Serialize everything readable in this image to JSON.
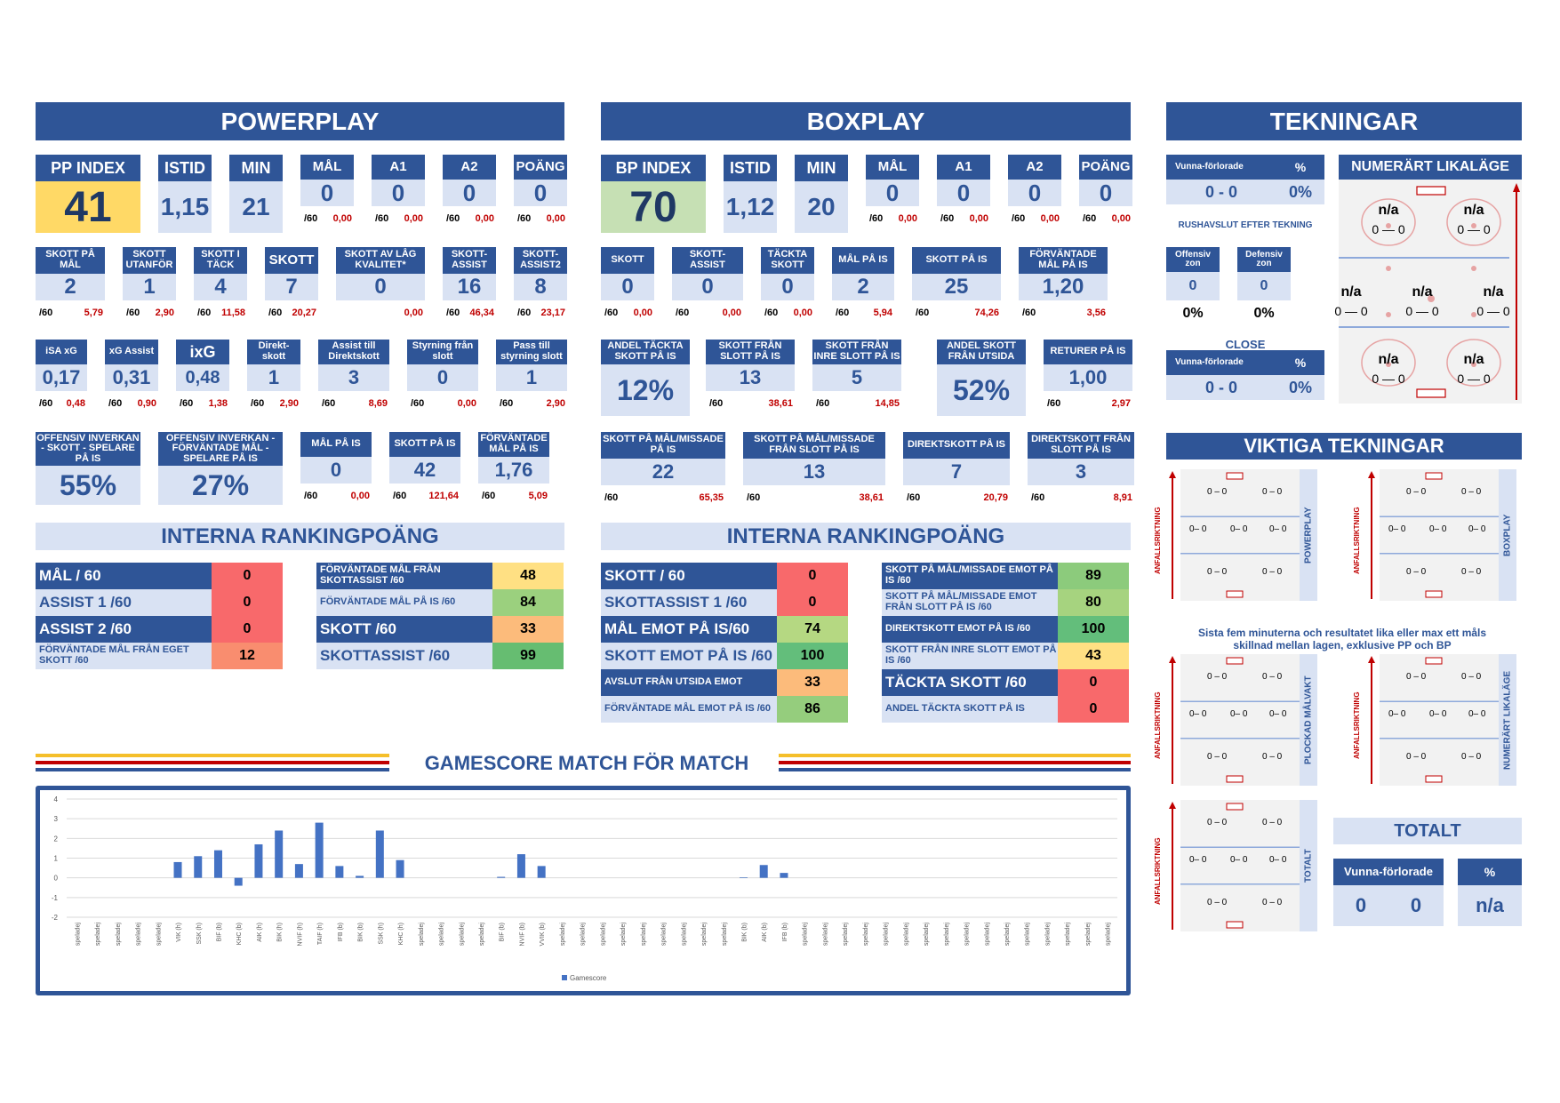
{
  "powerplay": {
    "title": "POWERPLAY",
    "row1": [
      {
        "h": "PP INDEX",
        "v": "41"
      },
      {
        "h": "ISTID",
        "v": "1,15"
      },
      {
        "h": "MIN",
        "v": "21"
      },
      {
        "h": "MÅL",
        "v": "0",
        "p": "/60",
        "r": "0,00"
      },
      {
        "h": "A1",
        "v": "0",
        "p": "/60",
        "r": "0,00"
      },
      {
        "h": "A2",
        "v": "0",
        "p": "/60",
        "r": "0,00"
      },
      {
        "h": "POÄNG",
        "v": "0",
        "p": "/60",
        "r": "0,00"
      }
    ],
    "row2": [
      {
        "h": "SKOTT PÅ MÅL",
        "v": "2",
        "p": "/60",
        "r": "5,79"
      },
      {
        "h": "SKOTT UTANFÖR",
        "v": "1",
        "p": "/60",
        "r": "2,90"
      },
      {
        "h": "SKOTT I TÄCK",
        "v": "4",
        "p": "/60",
        "r": "11,58"
      },
      {
        "h": "SKOTT",
        "v": "7",
        "p": "/60",
        "r": "20,27"
      },
      {
        "h": "SKOTT AV LÅG KVALITET*",
        "v": "0",
        "p": "",
        "r": "0,00"
      },
      {
        "h": "SKOTT-ASSIST",
        "v": "16",
        "p": "/60",
        "r": "46,34"
      },
      {
        "h": "SKOTT-ASSIST2",
        "v": "8",
        "p": "/60",
        "r": "23,17"
      }
    ],
    "row3": [
      {
        "h": "iSA xG",
        "v": "0,17",
        "p": "/60",
        "r": "0,48"
      },
      {
        "h": "xG Assist",
        "v": "0,31",
        "p": "/60",
        "r": "0,90"
      },
      {
        "h": "ixG",
        "v": "0,48",
        "p": "/60",
        "r": "1,38"
      },
      {
        "h": "Direkt-skott",
        "v": "1",
        "p": "/60",
        "r": "2,90"
      },
      {
        "h": "Assist till Direktskott",
        "v": "3",
        "p": "/60",
        "r": "8,69"
      },
      {
        "h": "Styrning från slott",
        "v": "0",
        "p": "/60",
        "r": "0,00"
      },
      {
        "h": "Pass till styrning slott",
        "v": "1",
        "p": "/60",
        "r": "2,90"
      }
    ],
    "row4": [
      {
        "h": "OFFENSIV INVERKAN - SKOTT - SPELARE PÅ IS",
        "v": "55%"
      },
      {
        "h": "OFFENSIV INVERKAN - FÖRVÄNTADE MÅL - SPELARE PÅ IS",
        "v": "27%"
      },
      {
        "h": "MÅL PÅ IS",
        "v": "0",
        "p": "/60",
        "r": "0,00"
      },
      {
        "h": "SKOTT PÅ IS",
        "v": "42",
        "p": "/60",
        "r": "121,64"
      },
      {
        "h": "FÖRVÄNTADE MÅL PÅ IS",
        "v": "1,76",
        "p": "/60",
        "r": "5,09"
      }
    ]
  },
  "boxplay": {
    "title": "BOXPLAY",
    "row1": [
      {
        "h": "BP INDEX",
        "v": "70"
      },
      {
        "h": "ISTID",
        "v": "1,12"
      },
      {
        "h": "MIN",
        "v": "20"
      },
      {
        "h": "MÅL",
        "v": "0",
        "p": "/60",
        "r": "0,00"
      },
      {
        "h": "A1",
        "v": "0",
        "p": "/60",
        "r": "0,00"
      },
      {
        "h": "A2",
        "v": "0",
        "p": "/60",
        "r": "0,00"
      },
      {
        "h": "POÄNG",
        "v": "0",
        "p": "/60",
        "r": "0,00"
      }
    ],
    "row2": [
      {
        "h": "SKOTT",
        "v": "0",
        "p": "/60",
        "r": "0,00"
      },
      {
        "h": "SKOTT-ASSIST",
        "v": "0",
        "p": "/60",
        "r": "0,00"
      },
      {
        "h": "TÄCKTA SKOTT",
        "v": "0",
        "p": "/60",
        "r": "0,00"
      },
      {
        "h": "MÅL PÅ IS",
        "v": "2",
        "p": "/60",
        "r": "5,94"
      },
      {
        "h": "SKOTT PÅ IS",
        "v": "25",
        "p": "/60",
        "r": "74,26"
      },
      {
        "h": "FÖRVÄNTADE MÅL PÅ IS",
        "v": "1,20",
        "p": "/60",
        "r": "3,56"
      }
    ],
    "row3": [
      {
        "h": "ANDEL TÄCKTA SKOTT PÅ IS",
        "v": "12%"
      },
      {
        "h": "SKOTT FRÅN SLOTT PÅ IS",
        "v": "13",
        "p": "/60",
        "r": "38,61"
      },
      {
        "h": "SKOTT FRÅN INRE SLOTT PÅ IS",
        "v": "5",
        "p": "/60",
        "r": "14,85"
      },
      {
        "h": "ANDEL SKOTT FRÅN UTSIDA",
        "v": "52%"
      },
      {
        "h": "RETURER PÅ IS",
        "v": "1,00",
        "p": "/60",
        "r": "2,97"
      }
    ],
    "row4": [
      {
        "h": "SKOTT PÅ MÅL/MISSADE PÅ IS",
        "v": "22",
        "p": "/60",
        "r": "65,35"
      },
      {
        "h": "SKOTT PÅ MÅL/MISSADE FRÅN SLOTT PÅ IS",
        "v": "13",
        "p": "/60",
        "r": "38,61"
      },
      {
        "h": "DIREKTSKOTT PÅ IS",
        "v": "7",
        "p": "/60",
        "r": "20,79"
      },
      {
        "h": "DIREKTSKOTT FRÅN SLOTT PÅ IS",
        "v": "3",
        "p": "/60",
        "r": "8,91"
      }
    ]
  },
  "ranking": {
    "title": "INTERNA RANKINGPOÄNG",
    "pp_left": [
      {
        "l": "MÅL / 60",
        "v": "0",
        "c": "#f8696b"
      },
      {
        "l": "ASSIST 1 /60",
        "v": "0",
        "c": "#f8696b"
      },
      {
        "l": "ASSIST 2 /60",
        "v": "0",
        "c": "#f8696b"
      },
      {
        "l": "FÖRVÄNTADE MÅL FRÅN EGET SKOTT /60",
        "v": "12",
        "c": "#f98d6f"
      }
    ],
    "pp_right": [
      {
        "l": "FÖRVÄNTADE MÅL FRÅN SKOTTASSIST /60",
        "v": "48",
        "c": "#ffe083"
      },
      {
        "l": "FÖRVÄNTADE MÅL PÅ IS /60",
        "v": "84",
        "c": "#9bd07e"
      },
      {
        "l": "SKOTT /60",
        "v": "33",
        "c": "#fcbb7b"
      },
      {
        "l": "SKOTTASSIST /60",
        "v": "99",
        "c": "#66bd71"
      }
    ],
    "bp_left": [
      {
        "l": "SKOTT / 60",
        "v": "0",
        "c": "#f8696b"
      },
      {
        "l": "SKOTTASSIST 1 /60",
        "v": "0",
        "c": "#f8696b"
      },
      {
        "l": "MÅL EMOT PÅ IS/60",
        "v": "74",
        "c": "#b5d882"
      },
      {
        "l": "SKOTT EMOT PÅ IS /60",
        "v": "100",
        "c": "#63be7b"
      },
      {
        "l": "AVSLUT FRÅN UTSIDA EMOT",
        "v": "33",
        "c": "#fcbb7b"
      },
      {
        "l": "FÖRVÄNTADE MÅL EMOT PÅ IS /60",
        "v": "86",
        "c": "#95cd7d"
      }
    ],
    "bp_right": [
      {
        "l": "SKOTT PÅ MÅL/MISSADE EMOT PÅ IS /60",
        "v": "89",
        "c": "#8ccb7c"
      },
      {
        "l": "SKOTT PÅ MÅL/MISSADE EMOT FRÅN SLOTT PÅ IS /60",
        "v": "80",
        "c": "#a6d37f"
      },
      {
        "l": "DIREKTSKOTT EMOT PÅ IS /60",
        "v": "100",
        "c": "#63be7b"
      },
      {
        "l": "SKOTT FRÅN INRE SLOTT EMOT PÅ IS /60",
        "v": "43",
        "c": "#ffe083"
      },
      {
        "l": "TÄCKTA SKOTT /60",
        "v": "0",
        "c": "#f8696b"
      },
      {
        "l": "ANDEL TÄCKTA SKOTT PÅ IS",
        "v": "0",
        "c": "#f8696b"
      }
    ]
  },
  "tekningar": {
    "title": "TEKNINGAR",
    "vf": "Vunna-förlorade",
    "pct": "%",
    "score1": "0 - 0",
    "pct1": "0%",
    "rush": "RUSHAVSLUT EFTER TEKNING",
    "off": "Offensiv zon",
    "def": "Defensiv zon",
    "offv": "0",
    "defv": "0",
    "offp": "0%",
    "defp": "0%",
    "close": "CLOSE",
    "score2": "0 - 0",
    "pct2": "0%",
    "numlik": "NUMERÄRT LIKALÄGE",
    "na": "n/a",
    "zz": "0 — 0"
  },
  "viktiga": {
    "title": "VIKTIGA TEKNINGAR",
    "anf": "ANFALLSRIKTNING",
    "pp": "POWERPLAY",
    "bp": "BOXPLAY",
    "pm": "PLOCKAD MÅLVAKT",
    "nl": "NUMERÄRT LIKALÄGE",
    "tot": "TOTALT",
    "note": "Sista fem minuterna och resultatet lika eller max ett måls skillnad mellan lagen, exklusive PP och BP",
    "z1": "0 – 0",
    "z2": "0– 0"
  },
  "totalt": {
    "title": "TOTALT",
    "vf": "Vunna-förlorade",
    "pct": "%",
    "a": "0",
    "b": "0",
    "p": "n/a"
  },
  "chart_title": "GAMESCORE MATCH FÖR MATCH",
  "chart_data": {
    "type": "bar",
    "ylim": [
      -2,
      4
    ],
    "yticks": [
      "4",
      "3",
      "2",
      "1",
      "0",
      "-1",
      "-2"
    ],
    "legend": "Gamescore",
    "categories": [
      "speladej",
      "speladej",
      "speladej",
      "speladej",
      "speladej",
      "VIK (h)",
      "SSK (h)",
      "BIF (b)",
      "KHC (b)",
      "AIK (h)",
      "BIK (h)",
      "NVIF (h)",
      "TAIF (h)",
      "IFB (b)",
      "BIK (b)",
      "SSK (h)",
      "KHC (h)",
      "speladej",
      "speladej",
      "speladej",
      "speladej",
      "BIF (b)",
      "NVIF (b)",
      "VVIK (b)",
      "speladej",
      "speladej",
      "speladej",
      "speladej",
      "speladej",
      "speladej",
      "speladej",
      "speladej",
      "speladej",
      "BIK (b)",
      "AIK (b)",
      "IFB (b)",
      "speladej",
      "speladej",
      "speladej",
      "speladej",
      "speladej",
      "speladej",
      "speladej",
      "speladej",
      "speladej",
      "speladej",
      "speladej",
      "speladej",
      "speladej",
      "speladej",
      "speladej",
      "speladej"
    ],
    "values": [
      0,
      0,
      0,
      0,
      0,
      0.8,
      1.1,
      1.4,
      -0.4,
      1.7,
      2.4,
      0.7,
      2.8,
      0.6,
      0.1,
      2.4,
      0.9,
      0,
      0,
      0,
      0,
      0.05,
      1.2,
      0.6,
      0,
      0,
      0,
      0,
      0,
      0,
      0,
      0,
      0,
      0.03,
      0.65,
      0.25,
      0,
      0,
      0,
      0,
      0,
      0,
      0,
      0,
      0,
      0,
      0,
      0,
      0,
      0,
      0,
      0
    ]
  }
}
